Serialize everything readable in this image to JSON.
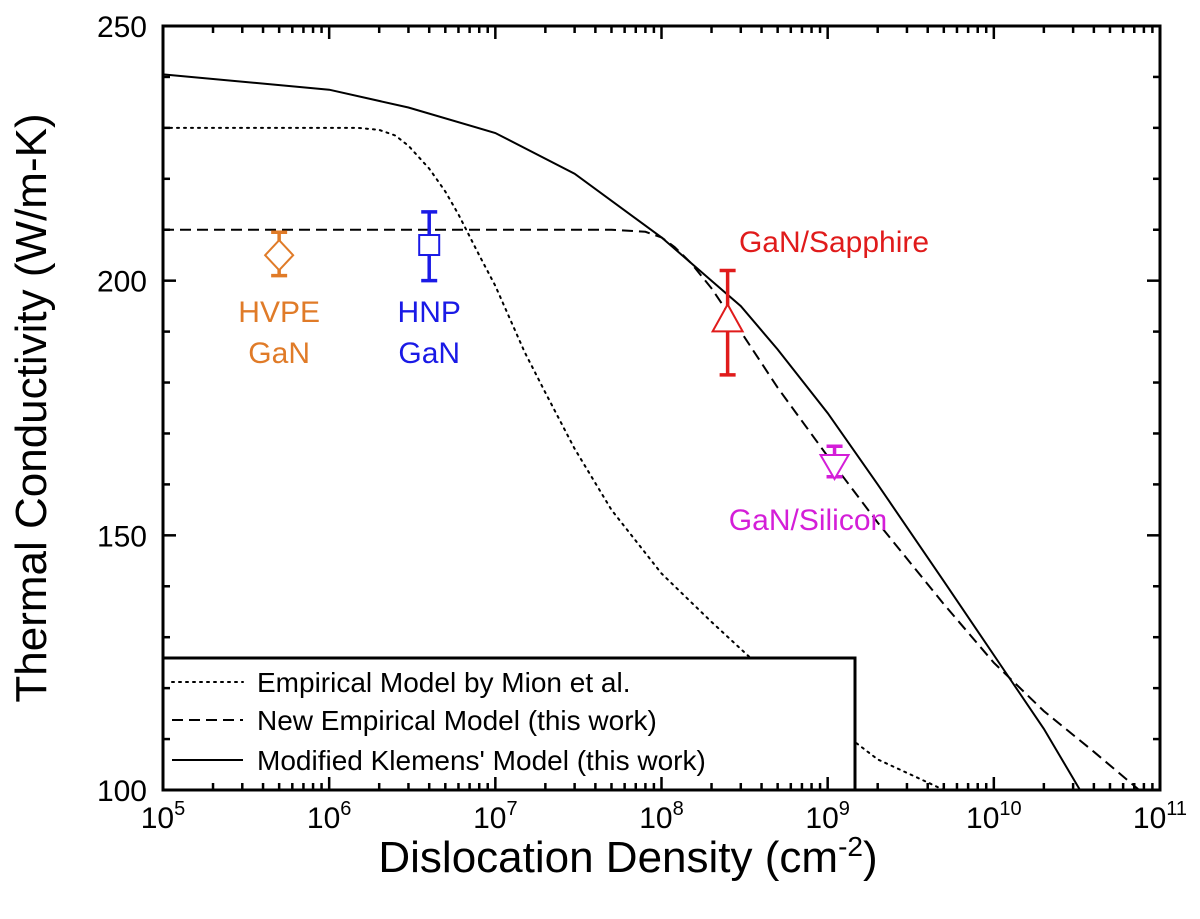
{
  "chart_data": {
    "type": "scatter",
    "xlabel": "Dislocation Density (cm",
    "xlabel_sup": "-2",
    "xlabel_end": ")",
    "ylabel": "Thermal Conductivity (W/m-K)",
    "xscale": "log",
    "xlim": [
      100000,
      100000000000
    ],
    "ylim": [
      100,
      250
    ],
    "x_ticks": [
      {
        "base": "10",
        "exp": "5",
        "value": 100000
      },
      {
        "base": "10",
        "exp": "6",
        "value": 1000000
      },
      {
        "base": "10",
        "exp": "7",
        "value": 10000000
      },
      {
        "base": "10",
        "exp": "8",
        "value": 100000000
      },
      {
        "base": "10",
        "exp": "9",
        "value": 1000000000
      },
      {
        "base": "10",
        "exp": "10",
        "value": 10000000000
      },
      {
        "base": "10",
        "exp": "11",
        "value": 100000000000
      }
    ],
    "y_ticks": [
      {
        "label": "100",
        "value": 100
      },
      {
        "label": "150",
        "value": 150
      },
      {
        "label": "200",
        "value": 200
      },
      {
        "label": "250",
        "value": 250
      }
    ],
    "legend": {
      "placement": "bottom-left",
      "entries": [
        {
          "label": "Empirical Model by Mion et al.",
          "style": "dotted",
          "color": "#000000"
        },
        {
          "label": "New Empirical Model (this work)",
          "style": "dashed",
          "color": "#000000"
        },
        {
          "label": "Modified Klemens' Model (this work)",
          "style": "solid",
          "color": "#000000"
        }
      ]
    },
    "lines": [
      {
        "style": "dotted",
        "color": "#000000",
        "points": [
          [
            100000,
            230
          ],
          [
            1000000,
            230
          ],
          [
            1500000,
            230
          ],
          [
            2000000,
            229.6
          ],
          [
            2500000,
            228.5
          ],
          [
            3000000,
            226.5
          ],
          [
            4000000,
            222
          ],
          [
            5000000,
            217.5
          ],
          [
            6000000,
            213
          ],
          [
            8000000,
            205
          ],
          [
            10000000,
            199
          ],
          [
            15000000,
            186
          ],
          [
            20000000,
            178
          ],
          [
            30000000,
            167
          ],
          [
            50000000,
            155
          ],
          [
            100000000,
            142.5
          ],
          [
            200000000,
            133
          ],
          [
            500000000,
            121
          ],
          [
            1000000000,
            113.5
          ],
          [
            2000000000,
            106
          ],
          [
            4000000000,
            101.5
          ],
          [
            5000000000,
            100
          ]
        ]
      },
      {
        "style": "dashed",
        "color": "#000000",
        "points": [
          [
            100000,
            210
          ],
          [
            10000000,
            210
          ],
          [
            50000000,
            210
          ],
          [
            80000000,
            209.6
          ],
          [
            100000000,
            208.5
          ],
          [
            120000000,
            206.6
          ],
          [
            150000000,
            203.5
          ],
          [
            200000000,
            198.5
          ],
          [
            300000000,
            190
          ],
          [
            500000000,
            179
          ],
          [
            1000000000,
            165.5
          ],
          [
            2000000000,
            152.5
          ],
          [
            5000000000,
            136.5
          ],
          [
            10000000000,
            125
          ],
          [
            20000000000,
            115.5
          ],
          [
            40000000000,
            107.5
          ],
          [
            75000000000,
            100
          ]
        ]
      },
      {
        "style": "solid",
        "color": "#000000",
        "points": [
          [
            100000,
            240.5
          ],
          [
            1000000,
            237.5
          ],
          [
            3000000,
            234
          ],
          [
            10000000,
            229
          ],
          [
            30000000,
            221
          ],
          [
            100000000,
            208.5
          ],
          [
            200000000,
            200
          ],
          [
            300000000,
            195
          ],
          [
            500000000,
            186.5
          ],
          [
            1000000000,
            174
          ],
          [
            2000000000,
            160
          ],
          [
            5000000000,
            141
          ],
          [
            10000000000,
            126.5
          ],
          [
            20000000000,
            112
          ],
          [
            33000000000,
            100
          ]
        ]
      }
    ],
    "points": [
      {
        "x": 500000,
        "y": 205,
        "err_low": 201,
        "err_high": 209.5,
        "marker": "diamond",
        "color": "#E07B28",
        "label_lines": [
          "HVPE",
          "GaN"
        ]
      },
      {
        "x": 4000000,
        "y": 207,
        "err_low": 200,
        "err_high": 213.5,
        "marker": "square",
        "color": "#1A1AE6",
        "label_lines": [
          "HNP",
          "GaN"
        ]
      },
      {
        "x": 250000000,
        "y": 192,
        "err_low": 181.5,
        "err_high": 202,
        "marker": "triangle-up",
        "color": "#E01B1B",
        "label_lines": [
          "GaN/Sapphire"
        ]
      },
      {
        "x": 1100000000,
        "y": 164,
        "err_low": 161.5,
        "err_high": 167.5,
        "marker": "triangle-down",
        "color": "#D41ED8",
        "label_lines": [
          "GaN/Silicon"
        ]
      }
    ]
  }
}
